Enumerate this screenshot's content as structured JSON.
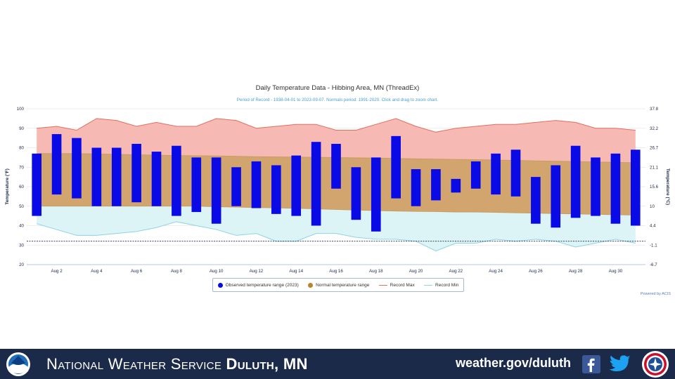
{
  "chart_data": {
    "type": "bar",
    "title": "Daily Temperature Data - Hibbing Area, MN (ThreadEx)",
    "subtitle": "Period of Record - 1938-04-01 to 2023-09-07. Normals period: 1991-2020. Click and drag to zoom chart.",
    "ylabel_left": "Temperature (°F)",
    "ylabel_right": "Temperature (°C)",
    "ylim": [
      20,
      100
    ],
    "yticks_left": [
      "100",
      "90",
      "80",
      "70",
      "60",
      "50",
      "40",
      "30",
      "20"
    ],
    "yticks_right": [
      "37.8",
      "32.2",
      "26.7",
      "21.1",
      "15.6",
      "10",
      "4.4",
      "-1.1",
      "-6.7"
    ],
    "xtick_labels": [
      "Aug 2",
      "Aug 4",
      "Aug 6",
      "Aug 8",
      "Aug 10",
      "Aug 12",
      "Aug 14",
      "Aug 16",
      "Aug 18",
      "Aug 20",
      "Aug 22",
      "Aug 24",
      "Aug 26",
      "Aug 28",
      "Aug 30"
    ],
    "days": [
      1,
      2,
      3,
      4,
      5,
      6,
      7,
      8,
      9,
      10,
      11,
      12,
      13,
      14,
      15,
      16,
      17,
      18,
      19,
      20,
      21,
      22,
      23,
      24,
      25,
      26,
      27,
      28,
      29,
      30,
      31
    ],
    "series": [
      {
        "name": "Observed temperature range (2023)",
        "low": [
          45,
          56,
          54,
          50,
          50,
          52,
          50,
          45,
          47,
          41,
          50,
          49,
          46,
          45,
          40,
          59,
          43,
          37,
          54,
          50,
          53,
          57,
          59,
          56,
          55,
          41,
          39,
          44,
          45,
          41,
          40
        ],
        "high": [
          77,
          87,
          85,
          80,
          80,
          82,
          78,
          81,
          75,
          75,
          70,
          73,
          71,
          76,
          83,
          82,
          70,
          75,
          86,
          69,
          69,
          64,
          73,
          77,
          79,
          65,
          71,
          81,
          75,
          77,
          79
        ]
      },
      {
        "name": "Normal temperature range",
        "low": [
          50,
          50,
          50,
          50,
          50,
          50,
          50,
          50,
          50,
          49.7,
          49.5,
          49.3,
          49.1,
          48.9,
          48.6,
          48.3,
          48,
          47.7,
          47.5,
          47.3,
          47.2,
          47,
          47,
          46.8,
          46.6,
          46.4,
          46.2,
          46,
          45.8,
          45.6,
          45.4
        ],
        "high": [
          77,
          77,
          77,
          76.8,
          76.6,
          76.4,
          76.2,
          76,
          75.9,
          75.8,
          75.6,
          75.4,
          75.3,
          75.2,
          75.1,
          75,
          74.8,
          74.7,
          74.5,
          74.3,
          74.2,
          74,
          73.9,
          73.7,
          73.5,
          73.3,
          73.1,
          72.9,
          72.7,
          72.5,
          72.3
        ]
      },
      {
        "name": "Record Max",
        "values": [
          90,
          91,
          89,
          95,
          94,
          91,
          93,
          91,
          91,
          95,
          94,
          90,
          91,
          92,
          92,
          89,
          89,
          92,
          95,
          91,
          88,
          90,
          91,
          92,
          92,
          93,
          94,
          93,
          90,
          90,
          89
        ]
      },
      {
        "name": "Record Min",
        "values": [
          41,
          38,
          35,
          35,
          36,
          37,
          39,
          42,
          40,
          38,
          35,
          36,
          32,
          32,
          36,
          36,
          34,
          33,
          33,
          32,
          27,
          31,
          31,
          33,
          32,
          33,
          32,
          29,
          31,
          33,
          31
        ]
      }
    ],
    "legend_position": "bottom",
    "colors": {
      "observed": "#0a0ae6",
      "normal": "#d2a46e",
      "record_max_fill": "#f7b9b3",
      "record_max_line": "#e07060",
      "record_min_fill": "#dcf4f6",
      "record_min_line": "#8fd3e3",
      "freeze_line": "#1b2a48",
      "axis_text": "#1b2a48"
    }
  },
  "legend": {
    "observed": "Observed temperature range (2023)",
    "normal": "Normal temperature range",
    "record_max": "Record Max",
    "record_min": "Record Min"
  },
  "credit": "Powered by ACIS",
  "footer": {
    "agency_prefix": "National Weather Service",
    "office": "Duluth, MN",
    "url": "weather.gov/duluth",
    "icons": [
      "noaa-logo",
      "facebook-icon",
      "twitter-icon",
      "nws-seal"
    ]
  }
}
